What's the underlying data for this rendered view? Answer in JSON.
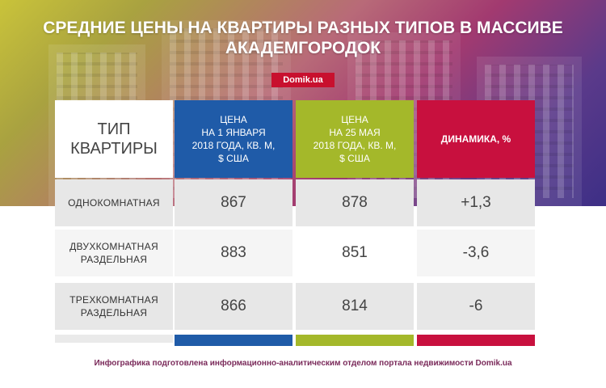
{
  "title": {
    "line1": "СРЕДНИЕ ЦЕНЫ НА КВАРТИРЫ РАЗНЫХ ТИПОВ В МАССИВЕ",
    "line2": "АКАДЕМГОРОДОК"
  },
  "logo": "Domik.ua",
  "headers": {
    "type": [
      "ТИП",
      "КВАРТИРЫ"
    ],
    "jan": [
      "ЦЕНА",
      "НА 1 ЯНВАРЯ",
      "2018 ГОДА, КВ. М,",
      "$ США"
    ],
    "may": [
      "ЦЕНА",
      "НА 25 МАЯ",
      "2018 ГОДА, КВ. М,",
      "$ США"
    ],
    "dyn": "ДИНАМИКА, %"
  },
  "rows": [
    {
      "type": [
        "ОДНОКОМНАТНАЯ"
      ],
      "jan": "867",
      "may": "878",
      "dyn": "+1,3"
    },
    {
      "type": [
        "ДВУХКОМНАТНАЯ",
        "РАЗДЕЛЬНАЯ"
      ],
      "jan": "883",
      "may": "851",
      "dyn": "-3,6"
    },
    {
      "type": [
        "ТРЕХКОМНАТНАЯ",
        "РАЗДЕЛЬНАЯ"
      ],
      "jan": "866",
      "may": "814",
      "dyn": "-6"
    }
  ],
  "footer": "Инфографика подготовлена информационно-аналитическим отделом портала недвижимости Domik.ua",
  "colors": {
    "jan": "#1f5ba8",
    "may": "#a4b82a",
    "dyn": "#c8103e"
  }
}
